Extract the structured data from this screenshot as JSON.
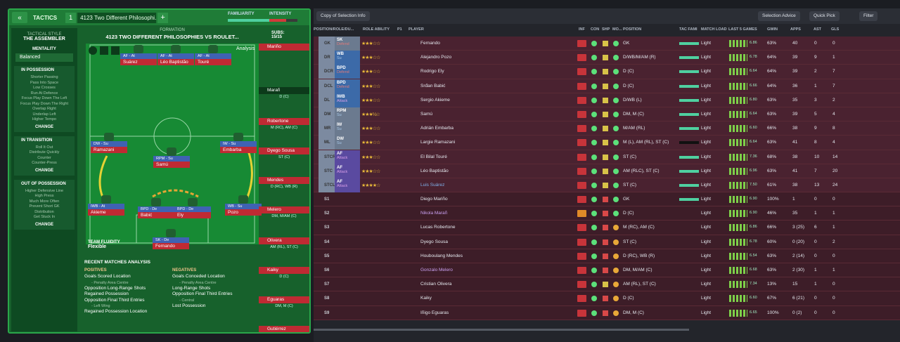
{
  "left_panel": {
    "tactics_label": "TACTICS",
    "tactic_number": "1",
    "tactic_name": "4123 Two Different Philosophi...",
    "familiarity_label": "FAMILIARITY",
    "intensity_label": "INTENSITY",
    "tactical_style_label": "TACTICAL STYLE",
    "tactical_style_value": "THE ASSEMBLER",
    "mentality_label": "MENTALITY",
    "mentality_value": "Balanced",
    "in_possession_title": "IN POSSESSION",
    "in_possession_items": [
      "Shorter Passing",
      "Pass Into Space",
      "Low Crosses",
      "Run At Defence",
      "Focus Play Down The Left",
      "Focus Play Down The Right",
      "Overlap Right",
      "Underlap Left",
      "Higher Tempo"
    ],
    "in_transition_title": "IN TRANSITION",
    "in_transition_items": [
      "Roll It Out",
      "Distribute Quickly",
      "Counter",
      "Counter-Press"
    ],
    "out_of_possession_title": "OUT OF POSSESSION",
    "out_of_possession_items": [
      "Higher Defensive Line",
      "High Press",
      "Much More Often",
      "Prevent Short GK",
      "Distribution",
      "Get Stuck In"
    ],
    "change_label": "CHANGE",
    "formation_label": "FORMATION",
    "formation_title": "4123 TWO DIFFERENT PHILOSOPHIES VS ROULET...",
    "subs_label": "SUBS:",
    "subs_value": "15/15",
    "analysis_label": "Analysis",
    "team_fluidity_label": "TEAM FLUIDITY",
    "team_fluidity_value": "Flexible",
    "recent_title": "RECENT MATCHES ANALYSIS",
    "positives_label": "POSITIVES",
    "negatives_label": "NEGATIVES"
  },
  "pitch_players": [
    {
      "role": "AF - At",
      "name": "Suárez"
    },
    {
      "role": "AF - At",
      "name": "Léo Baptistão"
    },
    {
      "role": "AF - At",
      "name": "Touré"
    },
    {
      "role": "DW - Su",
      "name": "Ramazani"
    },
    {
      "role": "IW - Su",
      "name": "Embarba"
    },
    {
      "role": "RPM - Su",
      "name": "Samú"
    },
    {
      "role": "IWB - At",
      "name": "Akieme"
    },
    {
      "role": "BPD - De",
      "name": "Babić"
    },
    {
      "role": "BPD - De",
      "name": "Ely"
    },
    {
      "role": "WB - Su",
      "name": "Pozo"
    },
    {
      "role": "SK - De",
      "name": "Fernando"
    }
  ],
  "subs": [
    {
      "name": "Mariño",
      "pos": ""
    },
    {
      "name": "Marañ",
      "pos": "D (C)"
    },
    {
      "name": "Robertone",
      "pos": "M (RC), AM (C)"
    },
    {
      "name": "Dyego Sousa",
      "pos": "ST (C)"
    },
    {
      "name": "Mendes",
      "pos": "D (RC), WB (R)"
    },
    {
      "name": "Melero",
      "pos": "DM, M/AM (C)"
    },
    {
      "name": "Olivera",
      "pos": "AM (RL), ST (C)"
    },
    {
      "name": "Kaiky",
      "pos": "D (C)"
    },
    {
      "name": "Eguaras",
      "pos": "DM, M (C)"
    },
    {
      "name": "Gutiérrez",
      "pos": ""
    }
  ],
  "positives": [
    {
      "text": "Goals Scored Location",
      "detail": "- Penalty Area Centre"
    },
    {
      "text": "Opposition Long-Range Shots",
      "detail": ""
    },
    {
      "text": "Regained Possession",
      "detail": ""
    },
    {
      "text": "Opposition Final Third Entries",
      "detail": "- Left Wing"
    },
    {
      "text": "Regained Possession Location",
      "detail": ""
    }
  ],
  "negatives": [
    {
      "text": "Goals Conceded Location",
      "detail": "- Penalty Area Centre"
    },
    {
      "text": "Long-Range Shots",
      "detail": ""
    },
    {
      "text": "Opposition Final Third Entries",
      "detail": "- Central"
    },
    {
      "text": "Lost Possession",
      "detail": ""
    }
  ],
  "right_panel": {
    "copy_button": "Copy of Selection Info",
    "selection_advice": "Selection Advice",
    "quick_pick": "Quick Pick",
    "filter": "Filter",
    "headers": {
      "position_role": "POSITION/ROLE/DU...",
      "role_ability": "ROLE ABILITY",
      "p1": "P1",
      "player": "PLAYER",
      "inf": "INF",
      "con": "CON",
      "shp": "SHP",
      "mo": "MO...",
      "position": "POSITION",
      "tac_fam": "TAC FAMI",
      "match_load": "MATCH LOAD",
      "last5": "LAST 5 GAMES",
      "gwin": "GWIN",
      "apps": "APPS",
      "ast": "AST",
      "gls": "GLS"
    }
  },
  "squad": [
    {
      "slot": "GK",
      "role": "SK",
      "duty": "Defend",
      "stars": "★★★☆☆",
      "name": "Fernando",
      "position": "GK",
      "load": "Light",
      "rating": "6.86",
      "gwin": "63%",
      "apps": "40",
      "ast": "0",
      "gls": "0"
    },
    {
      "slot": "DR",
      "role": "WB",
      "duty": "Su",
      "stars": "★★★☆☆",
      "name": "Alejandro Pozo",
      "position": "D/WB/M/AM (R)",
      "load": "Light",
      "rating": "6.78",
      "gwin": "64%",
      "apps": "39",
      "ast": "9",
      "gls": "1"
    },
    {
      "slot": "DCR",
      "role": "BPD",
      "duty": "Defend",
      "stars": "★★★☆☆",
      "name": "Rodrigo Ely",
      "position": "D (C)",
      "load": "Light",
      "rating": "6.64",
      "gwin": "64%",
      "apps": "39",
      "ast": "2",
      "gls": "7"
    },
    {
      "slot": "DCL",
      "role": "BPD",
      "duty": "Defend",
      "stars": "★★★☆☆",
      "name": "Srđan Babić",
      "position": "D (C)",
      "load": "Light",
      "rating": "6.66",
      "gwin": "64%",
      "apps": "36",
      "ast": "1",
      "gls": "7"
    },
    {
      "slot": "DL",
      "role": "IWB",
      "duty": "Attack",
      "stars": "★★★☆☆",
      "name": "Sergio Akieme",
      "position": "D/WB (L)",
      "load": "Light",
      "rating": "6.80",
      "gwin": "63%",
      "apps": "35",
      "ast": "3",
      "gls": "2"
    },
    {
      "slot": "DM",
      "role": "RPM",
      "duty": "Su",
      "stars": "★★★½☆",
      "name": "Samú",
      "position": "DM, M (C)",
      "load": "Light",
      "rating": "6.64",
      "gwin": "63%",
      "apps": "39",
      "ast": "5",
      "gls": "4"
    },
    {
      "slot": "MR",
      "role": "IW",
      "duty": "Su",
      "stars": "★★★☆☆",
      "name": "Adrián Embarba",
      "position": "M/AM (RL)",
      "load": "Light",
      "rating": "6.60",
      "gwin": "66%",
      "apps": "38",
      "ast": "9",
      "gls": "8"
    },
    {
      "slot": "ML",
      "role": "DW",
      "duty": "Su",
      "stars": "★★★☆☆",
      "name": "Largie Ramazani",
      "position": "M (L), AM (RL), ST (C)",
      "load": "Light",
      "rating": "6.64",
      "gwin": "63%",
      "apps": "41",
      "ast": "8",
      "gls": "4"
    },
    {
      "slot": "STCR",
      "role": "AF",
      "duty": "Attack",
      "stars": "★★★☆☆",
      "name": "El Bilal Touré",
      "position": "ST (C)",
      "load": "Light",
      "rating": "7.36",
      "gwin": "68%",
      "apps": "38",
      "ast": "10",
      "gls": "14"
    },
    {
      "slot": "STC",
      "role": "AF",
      "duty": "Attack",
      "stars": "★★★☆☆",
      "name": "Léo Baptistão",
      "position": "AM (RLC), ST (C)",
      "load": "Light",
      "rating": "6.96",
      "gwin": "63%",
      "apps": "41",
      "ast": "7",
      "gls": "20"
    },
    {
      "slot": "STCL",
      "role": "AF",
      "duty": "Attack",
      "stars": "★★★★☆",
      "name": "Luis Suárez",
      "position": "ST (C)",
      "load": "Light",
      "rating": "7.50",
      "gwin": "61%",
      "apps": "38",
      "ast": "13",
      "gls": "24"
    },
    {
      "slot": "S1",
      "role": "",
      "duty": "",
      "stars": "",
      "name": "Diego Mariño",
      "position": "GK",
      "load": "Light",
      "rating": "6.90",
      "gwin": "100%",
      "apps": "1",
      "ast": "0",
      "gls": "0"
    },
    {
      "slot": "S2",
      "role": "",
      "duty": "",
      "stars": "",
      "name": "Nikola Marañ",
      "position": "D (C)",
      "load": "Light",
      "rating": "6.90",
      "gwin": "46%",
      "apps": "35",
      "ast": "1",
      "gls": "1"
    },
    {
      "slot": "S3",
      "role": "",
      "duty": "",
      "stars": "",
      "name": "Lucas Robertone",
      "position": "M (RC), AM (C)",
      "load": "Light",
      "rating": "6.86",
      "gwin": "66%",
      "apps": "3 (25)",
      "ast": "6",
      "gls": "1"
    },
    {
      "slot": "S4",
      "role": "",
      "duty": "",
      "stars": "",
      "name": "Dyego Sousa",
      "position": "ST (C)",
      "load": "Light",
      "rating": "6.78",
      "gwin": "60%",
      "apps": "0 (20)",
      "ast": "0",
      "gls": "2"
    },
    {
      "slot": "S5",
      "role": "",
      "duty": "",
      "stars": "",
      "name": "Houboulang Mendes",
      "position": "D (RC), WB (R)",
      "load": "Light",
      "rating": "6.54",
      "gwin": "63%",
      "apps": "2 (14)",
      "ast": "0",
      "gls": "0"
    },
    {
      "slot": "S6",
      "role": "",
      "duty": "",
      "stars": "",
      "name": "Gonzalo Melero",
      "position": "DM, M/AM (C)",
      "load": "Light",
      "rating": "6.68",
      "gwin": "63%",
      "apps": "2 (30)",
      "ast": "1",
      "gls": "1"
    },
    {
      "slot": "S7",
      "role": "",
      "duty": "",
      "stars": "",
      "name": "Cristian Olivera",
      "position": "AM (RL), ST (C)",
      "load": "Light",
      "rating": "7.34",
      "gwin": "13%",
      "apps": "15",
      "ast": "1",
      "gls": "0"
    },
    {
      "slot": "S8",
      "role": "",
      "duty": "",
      "stars": "",
      "name": "Kaiky",
      "position": "D (C)",
      "load": "Light",
      "rating": "6.60",
      "gwin": "67%",
      "apps": "6 (21)",
      "ast": "0",
      "gls": "0"
    },
    {
      "slot": "S9",
      "role": "",
      "duty": "",
      "stars": "",
      "name": "Iñigo Eguaras",
      "position": "DM, M (C)",
      "load": "Light",
      "rating": "6.65",
      "gwin": "100%",
      "apps": "0 (2)",
      "ast": "0",
      "gls": "0"
    }
  ]
}
